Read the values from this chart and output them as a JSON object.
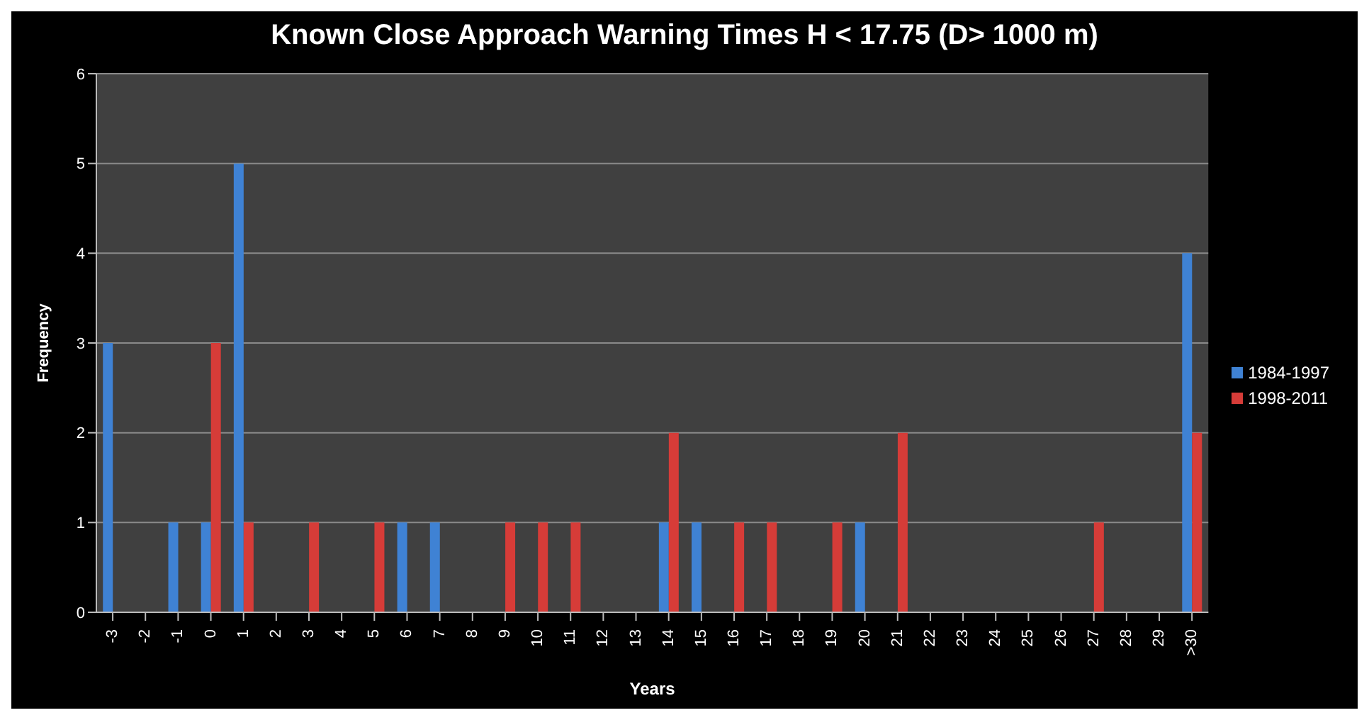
{
  "chart_data": {
    "type": "bar",
    "title": "Known Close Approach Warning Times H < 17.75 (D> 1000 m)",
    "xlabel": "Years",
    "ylabel": "Frequency",
    "categories": [
      "-3",
      "-2",
      "-1",
      "0",
      "1",
      "2",
      "3",
      "4",
      "5",
      "6",
      "7",
      "8",
      "9",
      "10",
      "11",
      "12",
      "13",
      "14",
      "15",
      "16",
      "17",
      "18",
      "19",
      "20",
      "21",
      "22",
      "23",
      "24",
      "25",
      "26",
      "27",
      "28",
      "29",
      ">30"
    ],
    "series": [
      {
        "name": "1984-1997",
        "color": "#3f82d4",
        "values": [
          3,
          0,
          1,
          1,
          5,
          0,
          0,
          0,
          0,
          1,
          1,
          0,
          0,
          0,
          0,
          0,
          0,
          1,
          1,
          0,
          0,
          0,
          0,
          1,
          0,
          0,
          0,
          0,
          0,
          0,
          0,
          0,
          0,
          4
        ]
      },
      {
        "name": "1998-2011",
        "color": "#d63c38",
        "values": [
          0,
          0,
          0,
          3,
          1,
          0,
          1,
          0,
          1,
          0,
          0,
          0,
          1,
          1,
          1,
          0,
          0,
          2,
          0,
          1,
          1,
          0,
          1,
          0,
          2,
          0,
          0,
          0,
          0,
          0,
          1,
          0,
          0,
          2
        ]
      }
    ],
    "ylim": [
      0,
      6
    ],
    "yticks": [
      0,
      1,
      2,
      3,
      4,
      5,
      6
    ],
    "grid": "y",
    "legend": "right"
  }
}
